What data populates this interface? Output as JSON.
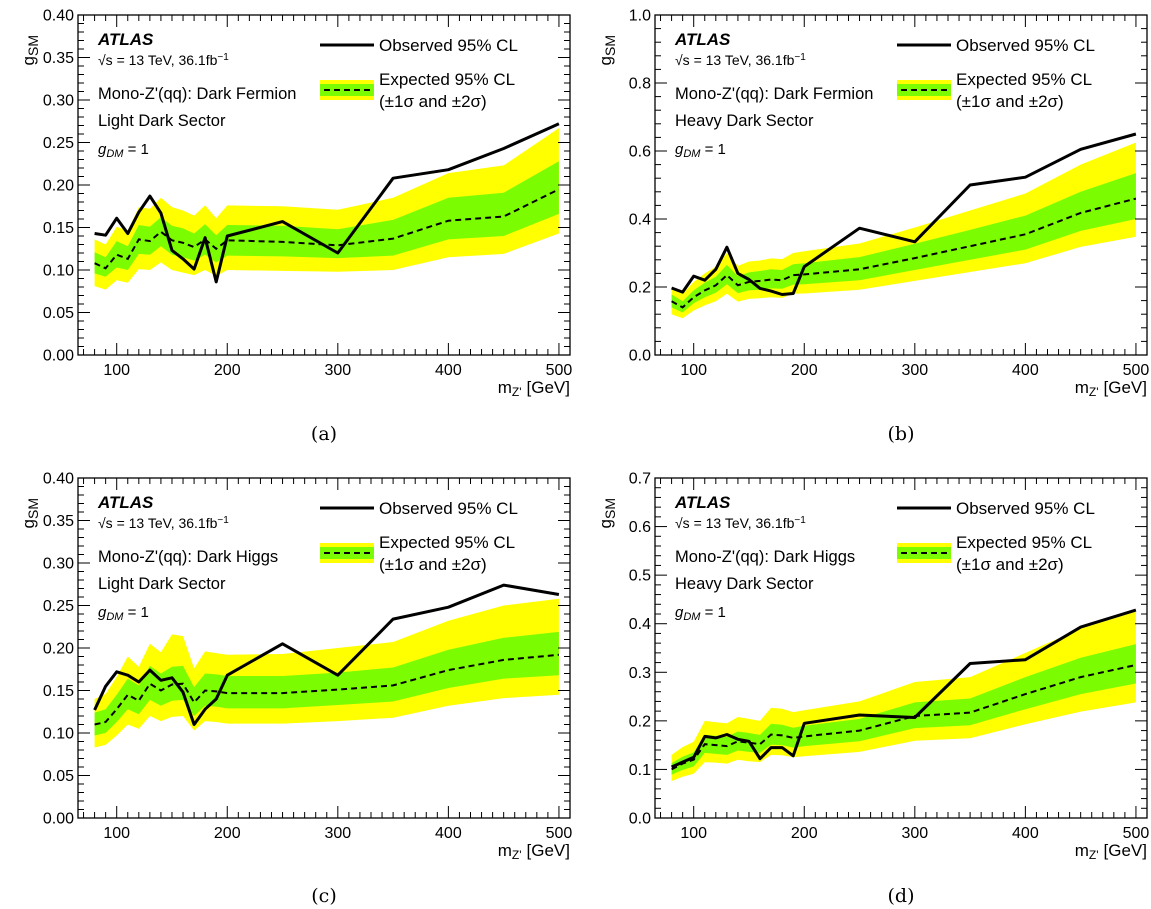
{
  "legend": {
    "observed": "Observed 95% CL",
    "expected": "Expected 95% CL",
    "expected_sub": "(±1σ and ±2σ)"
  },
  "atlas": {
    "label": "ATLAS",
    "energy_text": "= 13 TeV, 36.1fb",
    "energy_exp": "−1",
    "sqrt_s": "√s"
  },
  "colors": {
    "band_2sigma": "#ffff00",
    "band_1sigma": "#7cfc00",
    "observed": "#000000",
    "expected": "#000000"
  },
  "chart_data": [
    {
      "id": "a",
      "type": "line",
      "caption": "(a)",
      "model": "Mono-Z'(qq): Dark Fermion",
      "sector": "Light Dark Sector",
      "coupling": "= 1",
      "xlabel": "m_Z' [GeV]",
      "ylabel": "g_SM",
      "xlim": [
        65,
        510
      ],
      "ylim": [
        0,
        0.4
      ],
      "xticks": [
        100,
        200,
        300,
        400,
        500
      ],
      "yticks": [
        0,
        0.05,
        0.1,
        0.15,
        0.2,
        0.25,
        0.3,
        0.35,
        0.4
      ],
      "ytick_labels": [
        "0.00",
        "0.05",
        "0.10",
        "0.15",
        "0.20",
        "0.25",
        "0.30",
        "0.35",
        "0.40"
      ],
      "x": [
        80,
        90,
        100,
        110,
        120,
        130,
        140,
        150,
        160,
        170,
        180,
        190,
        200,
        250,
        300,
        350,
        400,
        450,
        500
      ],
      "observed": [
        0.143,
        0.141,
        0.161,
        0.143,
        0.168,
        0.187,
        0.167,
        0.123,
        0.113,
        0.101,
        0.138,
        0.086,
        0.14,
        0.157,
        0.12,
        0.208,
        0.218,
        0.243,
        0.272
      ],
      "expected": [
        0.108,
        0.102,
        0.118,
        0.113,
        0.136,
        0.134,
        0.145,
        0.135,
        0.132,
        0.127,
        0.136,
        0.125,
        0.135,
        0.133,
        0.129,
        0.137,
        0.158,
        0.163,
        0.195
      ],
      "band1_lo": [
        0.096,
        0.092,
        0.103,
        0.1,
        0.119,
        0.118,
        0.128,
        0.118,
        0.115,
        0.111,
        0.118,
        0.109,
        0.117,
        0.116,
        0.114,
        0.117,
        0.136,
        0.14,
        0.166
      ],
      "band1_hi": [
        0.121,
        0.115,
        0.134,
        0.128,
        0.153,
        0.151,
        0.162,
        0.152,
        0.149,
        0.143,
        0.154,
        0.141,
        0.153,
        0.152,
        0.148,
        0.159,
        0.185,
        0.191,
        0.228
      ],
      "band2_lo": [
        0.081,
        0.077,
        0.088,
        0.085,
        0.101,
        0.1,
        0.109,
        0.1,
        0.097,
        0.094,
        0.1,
        0.093,
        0.1,
        0.099,
        0.098,
        0.1,
        0.115,
        0.119,
        0.143
      ],
      "band2_hi": [
        0.136,
        0.13,
        0.151,
        0.146,
        0.174,
        0.172,
        0.185,
        0.174,
        0.17,
        0.164,
        0.176,
        0.161,
        0.176,
        0.175,
        0.171,
        0.185,
        0.214,
        0.223,
        0.267
      ]
    },
    {
      "id": "b",
      "type": "line",
      "caption": "(b)",
      "model": "Mono-Z'(qq): Dark Fermion",
      "sector": "Heavy Dark Sector",
      "coupling": "= 1",
      "xlabel": "m_Z' [GeV]",
      "ylabel": "g_SM",
      "xlim": [
        65,
        510
      ],
      "ylim": [
        0,
        1.0
      ],
      "xticks": [
        100,
        200,
        300,
        400,
        500
      ],
      "yticks": [
        0,
        0.2,
        0.4,
        0.6,
        0.8,
        1.0
      ],
      "ytick_labels": [
        "0.0",
        "0.2",
        "0.4",
        "0.6",
        "0.8",
        "1.0"
      ],
      "x": [
        80,
        90,
        100,
        110,
        120,
        130,
        140,
        150,
        160,
        170,
        180,
        190,
        200,
        250,
        300,
        350,
        400,
        450,
        500
      ],
      "observed": [
        0.197,
        0.185,
        0.232,
        0.22,
        0.252,
        0.317,
        0.24,
        0.222,
        0.196,
        0.188,
        0.178,
        0.181,
        0.26,
        0.373,
        0.333,
        0.5,
        0.523,
        0.605,
        0.65
      ],
      "expected": [
        0.158,
        0.14,
        0.17,
        0.19,
        0.205,
        0.235,
        0.205,
        0.215,
        0.218,
        0.222,
        0.22,
        0.235,
        0.237,
        0.252,
        0.285,
        0.32,
        0.355,
        0.418,
        0.46
      ],
      "band1_lo": [
        0.14,
        0.125,
        0.152,
        0.17,
        0.183,
        0.208,
        0.182,
        0.19,
        0.192,
        0.196,
        0.195,
        0.207,
        0.208,
        0.22,
        0.25,
        0.28,
        0.31,
        0.365,
        0.4
      ],
      "band1_hi": [
        0.178,
        0.158,
        0.19,
        0.213,
        0.23,
        0.265,
        0.232,
        0.243,
        0.247,
        0.252,
        0.25,
        0.267,
        0.27,
        0.288,
        0.327,
        0.368,
        0.41,
        0.48,
        0.535
      ],
      "band2_lo": [
        0.12,
        0.108,
        0.131,
        0.146,
        0.158,
        0.18,
        0.157,
        0.165,
        0.167,
        0.17,
        0.168,
        0.18,
        0.181,
        0.192,
        0.218,
        0.244,
        0.27,
        0.318,
        0.348
      ],
      "band2_hi": [
        0.2,
        0.18,
        0.215,
        0.24,
        0.26,
        0.3,
        0.262,
        0.275,
        0.278,
        0.284,
        0.282,
        0.3,
        0.305,
        0.328,
        0.375,
        0.425,
        0.475,
        0.56,
        0.625
      ]
    },
    {
      "id": "c",
      "type": "line",
      "caption": "(c)",
      "model": "Mono-Z'(qq): Dark Higgs",
      "sector": "Light Dark Sector",
      "coupling": "= 1",
      "xlabel": "m_Z' [GeV]",
      "ylabel": "g_SM",
      "xlim": [
        65,
        510
      ],
      "ylim": [
        0,
        0.4
      ],
      "xticks": [
        100,
        200,
        300,
        400,
        500
      ],
      "yticks": [
        0,
        0.05,
        0.1,
        0.15,
        0.2,
        0.25,
        0.3,
        0.35,
        0.4
      ],
      "ytick_labels": [
        "0.00",
        "0.05",
        "0.10",
        "0.15",
        "0.20",
        "0.25",
        "0.30",
        "0.35",
        "0.40"
      ],
      "x": [
        80,
        90,
        100,
        110,
        120,
        130,
        140,
        150,
        160,
        170,
        180,
        190,
        200,
        250,
        300,
        350,
        400,
        450,
        500
      ],
      "observed": [
        0.127,
        0.155,
        0.172,
        0.168,
        0.16,
        0.174,
        0.162,
        0.165,
        0.148,
        0.11,
        0.128,
        0.14,
        0.168,
        0.205,
        0.168,
        0.234,
        0.248,
        0.274,
        0.263
      ],
      "expected": [
        0.11,
        0.113,
        0.128,
        0.145,
        0.138,
        0.158,
        0.15,
        0.157,
        0.158,
        0.136,
        0.15,
        0.149,
        0.147,
        0.147,
        0.151,
        0.156,
        0.174,
        0.186,
        0.192
      ],
      "band1_lo": [
        0.097,
        0.1,
        0.113,
        0.128,
        0.122,
        0.139,
        0.132,
        0.138,
        0.139,
        0.12,
        0.132,
        0.131,
        0.129,
        0.129,
        0.133,
        0.137,
        0.153,
        0.164,
        0.168
      ],
      "band1_hi": [
        0.124,
        0.128,
        0.145,
        0.164,
        0.156,
        0.179,
        0.17,
        0.178,
        0.179,
        0.154,
        0.17,
        0.169,
        0.167,
        0.167,
        0.171,
        0.177,
        0.198,
        0.212,
        0.219
      ],
      "band2_lo": [
        0.083,
        0.086,
        0.097,
        0.11,
        0.105,
        0.12,
        0.114,
        0.119,
        0.12,
        0.103,
        0.114,
        0.113,
        0.111,
        0.111,
        0.114,
        0.118,
        0.132,
        0.141,
        0.145
      ],
      "band2_hi": [
        0.14,
        0.146,
        0.166,
        0.19,
        0.178,
        0.205,
        0.195,
        0.216,
        0.214,
        0.176,
        0.196,
        0.194,
        0.192,
        0.193,
        0.2,
        0.207,
        0.232,
        0.25,
        0.258
      ]
    },
    {
      "id": "d",
      "type": "line",
      "caption": "(d)",
      "model": "Mono-Z'(qq): Dark Higgs",
      "sector": "Heavy Dark Sector",
      "coupling": "= 1",
      "xlabel": "m_Z' [GeV]",
      "ylabel": "g_SM",
      "xlim": [
        65,
        510
      ],
      "ylim": [
        0,
        0.7
      ],
      "xticks": [
        100,
        200,
        300,
        400,
        500
      ],
      "yticks": [
        0,
        0.1,
        0.2,
        0.3,
        0.4,
        0.5,
        0.6,
        0.7
      ],
      "ytick_labels": [
        "0.0",
        "0.1",
        "0.2",
        "0.3",
        "0.4",
        "0.5",
        "0.6",
        "0.7"
      ],
      "x": [
        80,
        90,
        100,
        110,
        120,
        130,
        140,
        150,
        160,
        170,
        180,
        190,
        200,
        250,
        300,
        350,
        400,
        450,
        500
      ],
      "observed": [
        0.105,
        0.115,
        0.125,
        0.168,
        0.165,
        0.172,
        0.162,
        0.158,
        0.122,
        0.145,
        0.145,
        0.128,
        0.195,
        0.212,
        0.207,
        0.318,
        0.326,
        0.393,
        0.428
      ],
      "expected": [
        0.1,
        0.112,
        0.12,
        0.152,
        0.15,
        0.148,
        0.158,
        0.155,
        0.152,
        0.172,
        0.17,
        0.165,
        0.168,
        0.18,
        0.21,
        0.217,
        0.255,
        0.29,
        0.315
      ],
      "band1_lo": [
        0.089,
        0.099,
        0.106,
        0.134,
        0.132,
        0.13,
        0.139,
        0.136,
        0.134,
        0.151,
        0.15,
        0.145,
        0.148,
        0.158,
        0.185,
        0.191,
        0.224,
        0.255,
        0.277
      ],
      "band1_hi": [
        0.113,
        0.126,
        0.135,
        0.171,
        0.169,
        0.167,
        0.178,
        0.175,
        0.171,
        0.194,
        0.192,
        0.186,
        0.19,
        0.204,
        0.238,
        0.246,
        0.29,
        0.33,
        0.358
      ],
      "band2_lo": [
        0.076,
        0.085,
        0.091,
        0.115,
        0.114,
        0.112,
        0.12,
        0.117,
        0.115,
        0.13,
        0.129,
        0.125,
        0.127,
        0.136,
        0.159,
        0.164,
        0.193,
        0.219,
        0.238
      ],
      "band2_hi": [
        0.13,
        0.146,
        0.157,
        0.2,
        0.197,
        0.195,
        0.208,
        0.204,
        0.2,
        0.227,
        0.225,
        0.218,
        0.222,
        0.24,
        0.28,
        0.29,
        0.34,
        0.39,
        0.425
      ]
    }
  ]
}
